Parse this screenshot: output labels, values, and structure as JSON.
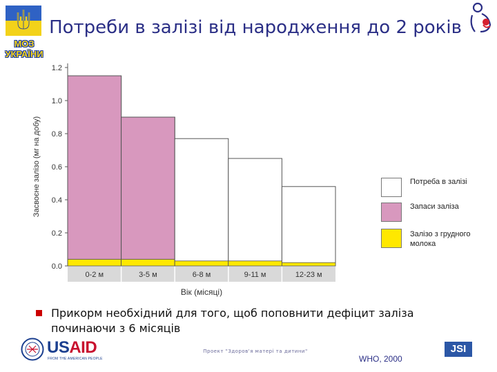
{
  "title": "Потреби в залізі від народження до 2 років",
  "logo_left": {
    "lines": [
      "МОЗ",
      "УКРАЇНИ"
    ]
  },
  "chart_data": {
    "type": "bar",
    "ylabel": "Засвоєне залізо (мг на добу)",
    "xlabel": "Вік (місяці)",
    "ylim": [
      0,
      1.2
    ],
    "yticks": [
      "0.0",
      "0.2",
      "0.4",
      "0.6",
      "0.8",
      "1.0",
      "1.2"
    ],
    "categories": [
      "0-2 м",
      "3-5 м",
      "6-8 м",
      "9-11 м",
      "12-23 м"
    ],
    "series": [
      {
        "name": "Потреба в залізі",
        "values": [
          1.15,
          0.9,
          0.77,
          0.65,
          0.48
        ],
        "color": "#ffffff"
      },
      {
        "name": "Запаси заліза",
        "values": [
          1.11,
          0.86,
          0.0,
          0.0,
          0.0
        ],
        "color": "#d898be"
      },
      {
        "name": "Залізо з грудного молока",
        "values": [
          0.04,
          0.04,
          0.03,
          0.03,
          0.02
        ],
        "color": "#ffe800"
      }
    ]
  },
  "legend": [
    {
      "label": "Потреба в залізі",
      "color": "#ffffff"
    },
    {
      "label": "Запаси заліза",
      "color": "#d898be"
    },
    {
      "label": "Залізо з грудного молока",
      "color": "#ffe800"
    }
  ],
  "bullet": "Прикорм необхідний для того, щоб поповнити дефіцит заліза починаючи з 6 місяців",
  "footer": {
    "usaid_us": "US",
    "usaid_aid": "AID",
    "usaid_sub": "FROM THE AMERICAN PEOPLE",
    "project": "Проект \"Здоров'я матері та дитини\"",
    "source": "WHO, 2000",
    "jsi": "JSI"
  },
  "colors": {
    "title": "#2b2f86",
    "bullet": "#cc0000",
    "bar_outline": "#555555"
  }
}
